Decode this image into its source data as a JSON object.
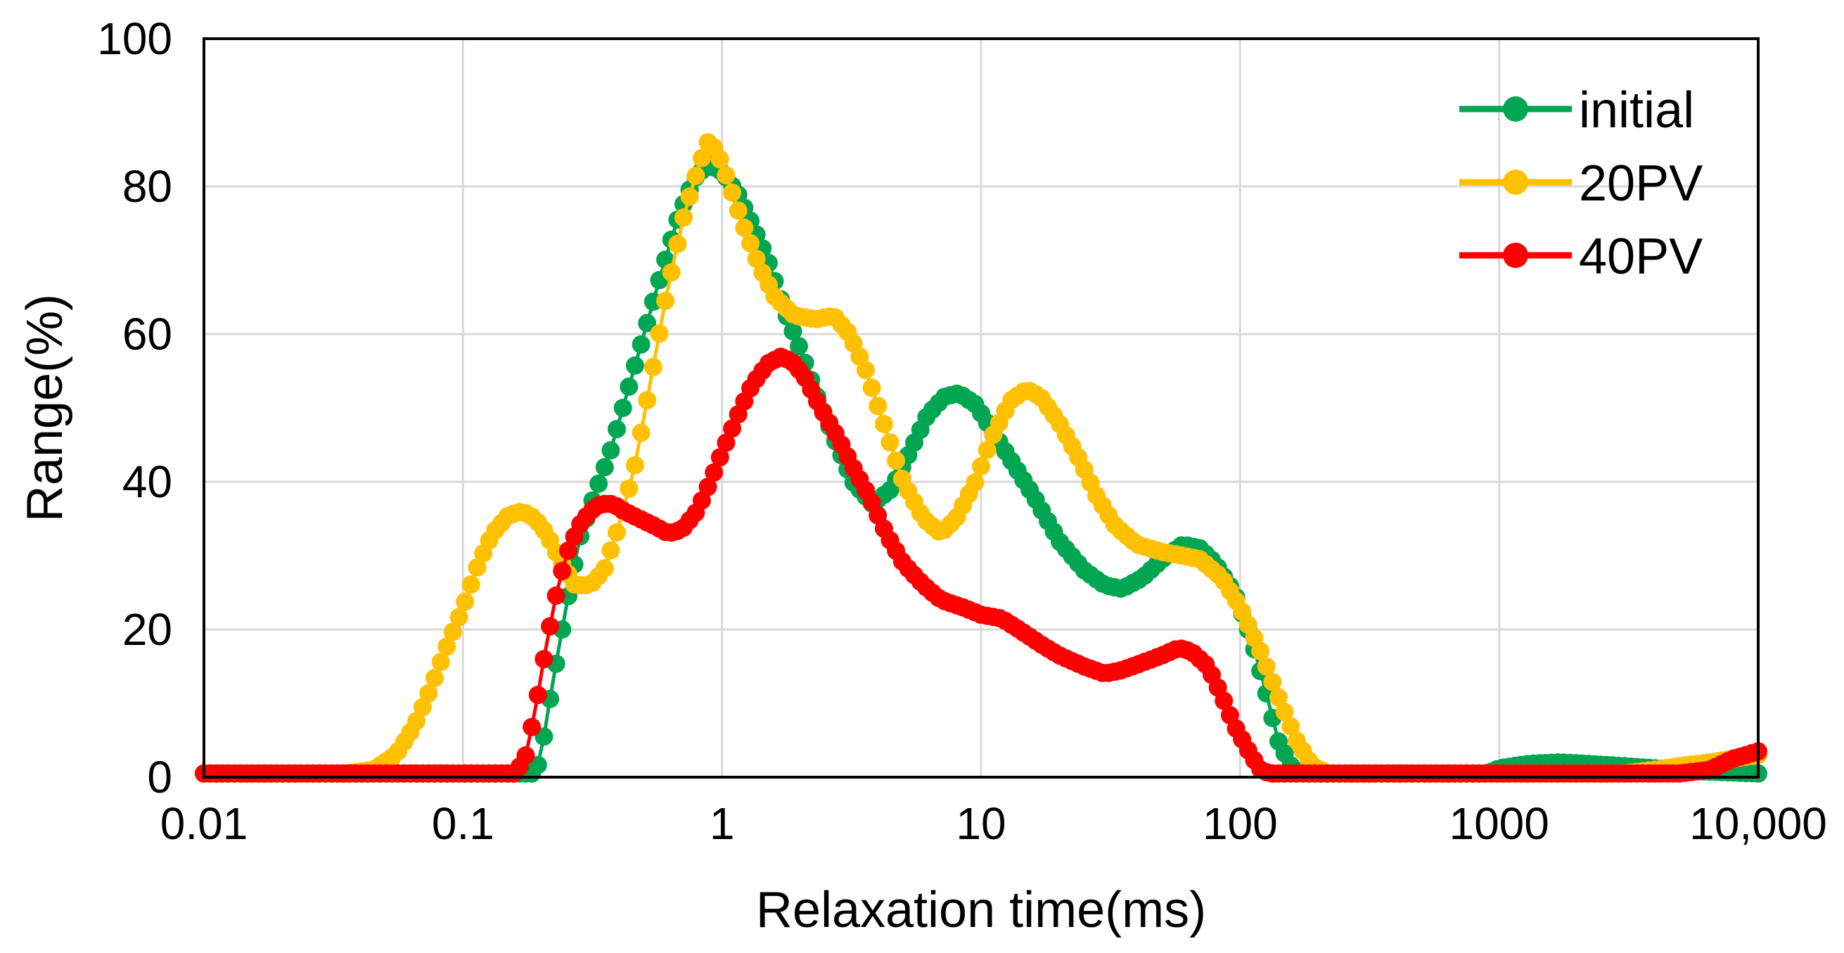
{
  "chart_data": {
    "type": "scatter",
    "title": "",
    "xlabel": "Relaxation time(ms)",
    "ylabel": "Range(%)",
    "xscale": "log",
    "xlim": [
      0.01,
      10000
    ],
    "ylim": [
      0,
      100
    ],
    "grid": true,
    "legend_position": "top-right",
    "xticks": [
      {
        "value": 0.01,
        "label": "0.01"
      },
      {
        "value": 0.1,
        "label": "0.1"
      },
      {
        "value": 1,
        "label": "1"
      },
      {
        "value": 10,
        "label": "10"
      },
      {
        "value": 100,
        "label": "100"
      },
      {
        "value": 1000,
        "label": "1000"
      },
      {
        "value": 10000,
        "label": "10,000"
      }
    ],
    "yticks": [
      {
        "value": 0,
        "label": "0"
      },
      {
        "value": 20,
        "label": "20"
      },
      {
        "value": 40,
        "label": "40"
      },
      {
        "value": 60,
        "label": "60"
      },
      {
        "value": 80,
        "label": "80"
      },
      {
        "value": 100,
        "label": "100"
      }
    ],
    "series": [
      {
        "name": "initial",
        "color": "#00a651",
        "points": [
          [
            0.01,
            0.5
          ],
          [
            0.05,
            0.5
          ],
          [
            0.15,
            0.5
          ],
          [
            0.19,
            0.5
          ],
          [
            0.2,
            3
          ],
          [
            0.22,
            12
          ],
          [
            0.25,
            23
          ],
          [
            0.28,
            32
          ],
          [
            0.32,
            38
          ],
          [
            0.37,
            44
          ],
          [
            0.43,
            52
          ],
          [
            0.5,
            60
          ],
          [
            0.58,
            68
          ],
          [
            0.68,
            76
          ],
          [
            0.78,
            81
          ],
          [
            0.88,
            83
          ],
          [
            1.0,
            82
          ],
          [
            1.15,
            79
          ],
          [
            1.3,
            75
          ],
          [
            1.5,
            70
          ],
          [
            1.75,
            63
          ],
          [
            2.0,
            58
          ],
          [
            2.3,
            52
          ],
          [
            2.7,
            46
          ],
          [
            3.2,
            40
          ],
          [
            3.8,
            37
          ],
          [
            4.5,
            39
          ],
          [
            5.3,
            44
          ],
          [
            6.2,
            49
          ],
          [
            7.2,
            51.5
          ],
          [
            8.2,
            52
          ],
          [
            9.5,
            50.5
          ],
          [
            11,
            47
          ],
          [
            13,
            43
          ],
          [
            16,
            38
          ],
          [
            20,
            32
          ],
          [
            25,
            28
          ],
          [
            30,
            26
          ],
          [
            35,
            25.5
          ],
          [
            42,
            27
          ],
          [
            50,
            29.5
          ],
          [
            60,
            31.5
          ],
          [
            70,
            31
          ],
          [
            80,
            29
          ],
          [
            95,
            25
          ],
          [
            110,
            19
          ],
          [
            125,
            12
          ],
          [
            140,
            5
          ],
          [
            160,
            1
          ],
          [
            180,
            0.5
          ],
          [
            500,
            0.5
          ],
          [
            900,
            0.5
          ],
          [
            1000,
            1.2
          ],
          [
            1300,
            1.8
          ],
          [
            1700,
            2
          ],
          [
            2200,
            1.8
          ],
          [
            3000,
            1.5
          ],
          [
            4000,
            1.2
          ],
          [
            6000,
            0.8
          ],
          [
            10000,
            0.5
          ]
        ]
      },
      {
        "name": "20PV",
        "color": "#ffc000",
        "points": [
          [
            0.01,
            0.5
          ],
          [
            0.035,
            0.5
          ],
          [
            0.045,
            1
          ],
          [
            0.055,
            3
          ],
          [
            0.065,
            7
          ],
          [
            0.075,
            12
          ],
          [
            0.085,
            17
          ],
          [
            0.1,
            23
          ],
          [
            0.115,
            29
          ],
          [
            0.13,
            33
          ],
          [
            0.15,
            35.5
          ],
          [
            0.17,
            36
          ],
          [
            0.19,
            35
          ],
          [
            0.21,
            33
          ],
          [
            0.24,
            29
          ],
          [
            0.27,
            26
          ],
          [
            0.31,
            26
          ],
          [
            0.35,
            28
          ],
          [
            0.4,
            34
          ],
          [
            0.46,
            42
          ],
          [
            0.52,
            52
          ],
          [
            0.6,
            64
          ],
          [
            0.7,
            75
          ],
          [
            0.8,
            82
          ],
          [
            0.88,
            86
          ],
          [
            0.95,
            85
          ],
          [
            1.05,
            81
          ],
          [
            1.2,
            75
          ],
          [
            1.4,
            69
          ],
          [
            1.6,
            65
          ],
          [
            1.9,
            62.5
          ],
          [
            2.3,
            62
          ],
          [
            2.7,
            62.5
          ],
          [
            3.1,
            60
          ],
          [
            3.6,
            55
          ],
          [
            4.2,
            48
          ],
          [
            5.0,
            40
          ],
          [
            6.0,
            35
          ],
          [
            7.0,
            33
          ],
          [
            8.0,
            35
          ],
          [
            9.5,
            40
          ],
          [
            11,
            46
          ],
          [
            13,
            51
          ],
          [
            15,
            52.5
          ],
          [
            17,
            51.5
          ],
          [
            20,
            48
          ],
          [
            24,
            43
          ],
          [
            28,
            38
          ],
          [
            33,
            34
          ],
          [
            40,
            31.5
          ],
          [
            50,
            30.5
          ],
          [
            60,
            30
          ],
          [
            70,
            29.5
          ],
          [
            85,
            27
          ],
          [
            100,
            23
          ],
          [
            120,
            17
          ],
          [
            140,
            11
          ],
          [
            165,
            5
          ],
          [
            190,
            1.5
          ],
          [
            220,
            0.5
          ],
          [
            1000,
            0.5
          ],
          [
            2000,
            0.5
          ],
          [
            3000,
            0.5
          ],
          [
            4000,
            1
          ],
          [
            5000,
            1.5
          ],
          [
            6500,
            2
          ],
          [
            8000,
            2.5
          ],
          [
            10000,
            3
          ]
        ]
      },
      {
        "name": "40PV",
        "color": "#ff0000",
        "points": [
          [
            0.01,
            0.5
          ],
          [
            0.1,
            0.5
          ],
          [
            0.16,
            0.5
          ],
          [
            0.175,
            3
          ],
          [
            0.19,
            9
          ],
          [
            0.21,
            18
          ],
          [
            0.23,
            25
          ],
          [
            0.25,
            30
          ],
          [
            0.28,
            34
          ],
          [
            0.31,
            36
          ],
          [
            0.34,
            37
          ],
          [
            0.38,
            37
          ],
          [
            0.42,
            36
          ],
          [
            0.48,
            35
          ],
          [
            0.55,
            34
          ],
          [
            0.62,
            33
          ],
          [
            0.7,
            33.5
          ],
          [
            0.8,
            36
          ],
          [
            0.9,
            40
          ],
          [
            1.0,
            44
          ],
          [
            1.15,
            49
          ],
          [
            1.3,
            53
          ],
          [
            1.5,
            56
          ],
          [
            1.7,
            57
          ],
          [
            1.9,
            56
          ],
          [
            2.1,
            54
          ],
          [
            2.4,
            50
          ],
          [
            2.8,
            46
          ],
          [
            3.2,
            42
          ],
          [
            3.7,
            38
          ],
          [
            4.3,
            33
          ],
          [
            5.0,
            29
          ],
          [
            6.0,
            26
          ],
          [
            7.0,
            24
          ],
          [
            8.5,
            23
          ],
          [
            10,
            22
          ],
          [
            12,
            21.5
          ],
          [
            14,
            20
          ],
          [
            17,
            18
          ],
          [
            20,
            16.5
          ],
          [
            25,
            15
          ],
          [
            30,
            14
          ],
          [
            35,
            14.5
          ],
          [
            42,
            15.5
          ],
          [
            50,
            16.5
          ],
          [
            58,
            17.5
          ],
          [
            65,
            17
          ],
          [
            75,
            15
          ],
          [
            85,
            11
          ],
          [
            95,
            7
          ],
          [
            110,
            3
          ],
          [
            120,
            1
          ],
          [
            130,
            0.5
          ],
          [
            1000,
            0.5
          ],
          [
            3000,
            0.5
          ],
          [
            5000,
            0.5
          ],
          [
            6500,
            1
          ],
          [
            8000,
            2.5
          ],
          [
            9000,
            3
          ],
          [
            10000,
            3.5
          ]
        ]
      }
    ]
  }
}
